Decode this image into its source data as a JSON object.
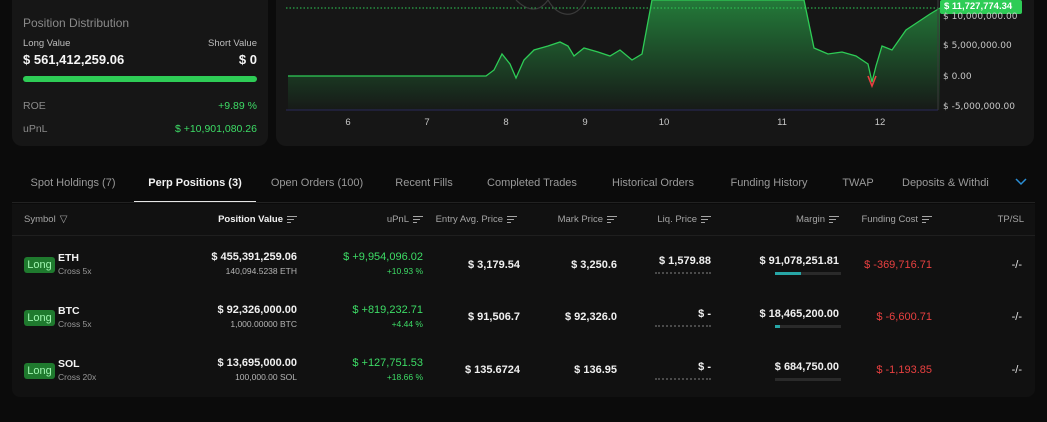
{
  "position_distribution": {
    "title": "Position Distribution",
    "long_label": "Long Value",
    "short_label": "Short Value",
    "long_value": "$ 561,412,259.06",
    "short_value": "$ 0",
    "long_fraction": 1.0,
    "roe_label": "ROE",
    "roe_value": "+9.89 %",
    "upnl_label": "uPnL",
    "upnl_value": "$ +10,901,080.26"
  },
  "chart": {
    "price_badge": "$ 11,727,774.34",
    "y_ticks": [
      "$ 10,000,000.00",
      "$ 5,000,000.00",
      "$ 0.00",
      "$ -5,000,000.00"
    ],
    "x_ticks": [
      "6",
      "7",
      "8",
      "9",
      "10",
      "11",
      "12"
    ],
    "line_color": "#2ecc56",
    "negative_color": "#e84040"
  },
  "tabs": [
    {
      "label": "Spot Holdings (7)"
    },
    {
      "label": "Perp Positions (3)"
    },
    {
      "label": "Open Orders (100)"
    },
    {
      "label": "Recent Fills"
    },
    {
      "label": "Completed Trades"
    },
    {
      "label": "Historical Orders"
    },
    {
      "label": "Funding History"
    },
    {
      "label": "TWAP"
    },
    {
      "label": "Deposits & Withdi"
    }
  ],
  "active_tab": 1,
  "table": {
    "headers": {
      "symbol": "Symbol",
      "position_value": "Position Value",
      "upnl": "uPnL",
      "entry": "Entry Avg. Price",
      "mark": "Mark Price",
      "liq": "Liq. Price",
      "margin": "Margin",
      "funding": "Funding Cost",
      "tpsl": "TP/SL"
    },
    "rows": [
      {
        "side": "Long",
        "coin": "ETH",
        "leverage": "Cross 5x",
        "position_value": "$ 455,391,259.06",
        "position_size": "140,094.5238 ETH",
        "upnl": "$ +9,954,096.02",
        "upnl_pct": "+10.93 %",
        "entry": "$ 3,179.54",
        "mark": "$ 3,250.6",
        "liq": "$ 1,579.88",
        "margin": "$ 91,078,251.81",
        "margin_fraction": 0.4,
        "funding": "$ -369,716.71",
        "tpsl": "-/-"
      },
      {
        "side": "Long",
        "coin": "BTC",
        "leverage": "Cross 5x",
        "position_value": "$ 92,326,000.00",
        "position_size": "1,000.00000 BTC",
        "upnl": "$ +819,232.71",
        "upnl_pct": "+4.44 %",
        "entry": "$ 91,506.7",
        "mark": "$ 92,326.0",
        "liq": "$ -",
        "margin": "$ 18,465,200.00",
        "margin_fraction": 0.08,
        "funding": "$ -6,600.71",
        "tpsl": "-/-"
      },
      {
        "side": "Long",
        "coin": "SOL",
        "leverage": "Cross 20x",
        "position_value": "$ 13,695,000.00",
        "position_size": "100,000.00 SOL",
        "upnl": "$ +127,751.53",
        "upnl_pct": "+18.66 %",
        "entry": "$ 135.6724",
        "mark": "$ 136.95",
        "liq": "$ -",
        "margin": "$ 684,750.00",
        "margin_fraction": 0.0,
        "funding": "$ -1,193.85",
        "tpsl": "-/-"
      }
    ]
  }
}
